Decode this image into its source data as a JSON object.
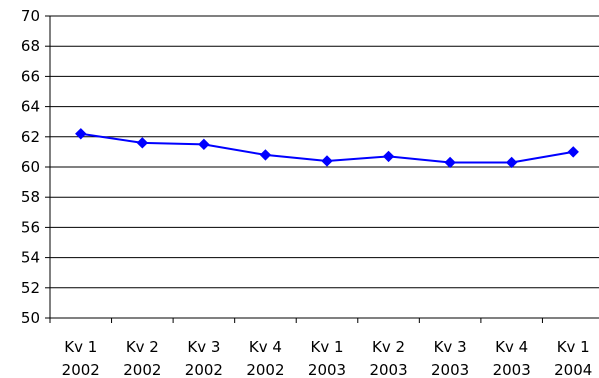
{
  "chart_data": {
    "type": "line",
    "categories": [
      [
        "Kv 1",
        "2002"
      ],
      [
        "Kv 2",
        "2002"
      ],
      [
        "Kv 3",
        "2002"
      ],
      [
        "Kv 4",
        "2002"
      ],
      [
        "Kv 1",
        "2003"
      ],
      [
        "Kv 2",
        "2003"
      ],
      [
        "Kv 3",
        "2003"
      ],
      [
        "Kv 4",
        "2003"
      ],
      [
        "Kv 1",
        "2004"
      ]
    ],
    "series": [
      {
        "values": [
          62.2,
          61.6,
          61.5,
          60.8,
          60.4,
          60.7,
          60.3,
          60.3,
          61.0
        ]
      }
    ],
    "ylim": [
      50,
      70
    ],
    "yticks": [
      50,
      52,
      54,
      56,
      58,
      60,
      62,
      64,
      66,
      68,
      70
    ],
    "grid": true,
    "legend": "none",
    "line_color": "#0000ff",
    "marker": "diamond"
  }
}
